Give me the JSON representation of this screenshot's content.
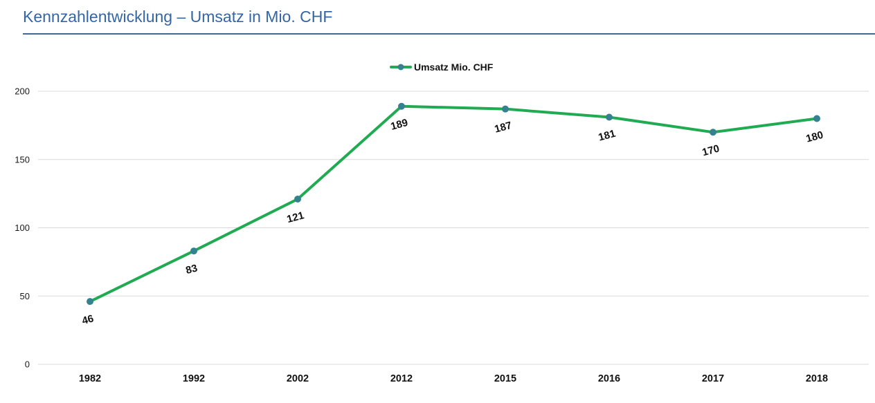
{
  "header": {
    "title": "Kennzahlentwicklung – Umsatz in Mio. CHF",
    "accent_color": "#3465a4",
    "rule_color": "#3d6896"
  },
  "chart_data": {
    "type": "line",
    "title": "Kennzahlentwicklung – Umsatz in Mio. CHF",
    "categories": [
      "1982",
      "1992",
      "2002",
      "2012",
      "2015",
      "2016",
      "2017",
      "2018"
    ],
    "series": [
      {
        "name": "Umsatz Mio. CHF",
        "values": [
          46,
          83,
          121,
          189,
          187,
          181,
          170,
          180
        ]
      }
    ],
    "xlabel": "",
    "ylabel": "",
    "ylim": [
      0,
      200
    ],
    "yticks": [
      0,
      50,
      100,
      150,
      200
    ],
    "grid": true,
    "legend_position": "top-center",
    "line_color": "#20ab52",
    "marker_color": "#35818f",
    "gridline_color": "#d9d9d9",
    "label_color": "#111111",
    "label_rotation_deg": -15
  }
}
